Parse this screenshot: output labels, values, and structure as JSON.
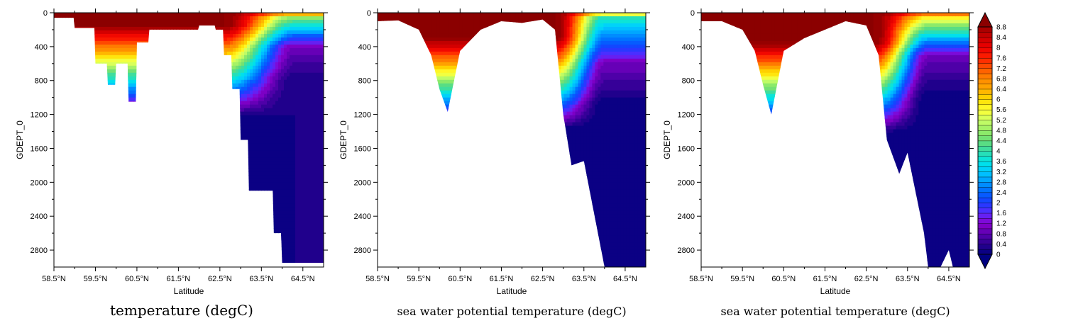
{
  "chart_data": [
    {
      "type": "filled-contour",
      "title": "temperature (degC)",
      "xlabel": "Latitude",
      "ylabel": "GDEPT_0",
      "xlim": [
        58.5,
        65.0
      ],
      "ylim": [
        3000,
        0
      ],
      "xticks": [
        58.5,
        59.5,
        60.5,
        61.5,
        62.5,
        63.5,
        64.5
      ],
      "xtick_labels": [
        "58.5°N",
        "59.5°N",
        "60.5°N",
        "61.5°N",
        "62.5°N",
        "63.5°N",
        "64.5°N"
      ],
      "yticks": [
        0,
        400,
        800,
        1200,
        1600,
        2000,
        2400,
        2800
      ],
      "ytick_labels": [
        "0",
        "400",
        "800",
        "1200",
        "1600",
        "2000",
        "2400",
        "2800"
      ],
      "bathymetry": [
        [
          58.5,
          60
        ],
        [
          59.0,
          180
        ],
        [
          59.5,
          600
        ],
        [
          59.8,
          850
        ],
        [
          60.0,
          600
        ],
        [
          60.3,
          1050
        ],
        [
          60.5,
          350
        ],
        [
          60.8,
          200
        ],
        [
          61.5,
          200
        ],
        [
          62.0,
          150
        ],
        [
          62.4,
          200
        ],
        [
          62.6,
          500
        ],
        [
          62.8,
          900
        ],
        [
          63.0,
          1500
        ],
        [
          63.2,
          2100
        ],
        [
          63.5,
          2100
        ],
        [
          63.8,
          2600
        ],
        [
          64.0,
          2950
        ],
        [
          65.0,
          2950
        ]
      ],
      "step_bottom": true,
      "profile": {
        "north_start_lat": 62.6,
        "north_end_lat": 64.3,
        "warm_temp": 9.0,
        "north_surface_temp": 5.0,
        "north_deep_temp": 0.2,
        "front_depth_south": 150,
        "front_depth_north": 400
      }
    },
    {
      "type": "filled-contour",
      "title": "sea water potential temperature (degC)",
      "xlabel": "Latitude",
      "ylabel": "GDEPT_0",
      "xlim": [
        58.5,
        65.0
      ],
      "ylim": [
        3000,
        0
      ],
      "xticks": [
        58.5,
        59.5,
        60.5,
        61.5,
        62.5,
        63.5,
        64.5
      ],
      "xtick_labels": [
        "58.5°N",
        "59.5°N",
        "60.5°N",
        "61.5°N",
        "62.5°N",
        "63.5°N",
        "64.5°N"
      ],
      "yticks": [
        0,
        400,
        800,
        1200,
        1600,
        2000,
        2400,
        2800
      ],
      "ytick_labels": [
        "0",
        "400",
        "800",
        "1200",
        "1600",
        "2000",
        "2400",
        "2800"
      ],
      "bathymetry": [
        [
          58.5,
          100
        ],
        [
          59.0,
          90
        ],
        [
          59.5,
          200
        ],
        [
          59.8,
          500
        ],
        [
          60.0,
          900
        ],
        [
          60.2,
          1170
        ],
        [
          60.5,
          450
        ],
        [
          61.0,
          200
        ],
        [
          61.5,
          100
        ],
        [
          62.0,
          120
        ],
        [
          62.5,
          80
        ],
        [
          62.8,
          200
        ],
        [
          63.0,
          1200
        ],
        [
          63.2,
          1800
        ],
        [
          63.5,
          1750
        ],
        [
          63.8,
          2500
        ],
        [
          64.0,
          3000
        ],
        [
          65.0,
          3000
        ]
      ],
      "step_bottom": false,
      "profile": {
        "north_start_lat": 62.8,
        "north_end_lat": 64.0,
        "warm_temp": 9.0,
        "north_surface_temp": 4.0,
        "north_deep_temp": 0.0,
        "front_depth_south": 300,
        "front_depth_north": 600
      }
    },
    {
      "type": "filled-contour",
      "title": "sea water potential temperature (degC)",
      "xlabel": "Latitude",
      "ylabel": "GDEPT_0",
      "xlim": [
        58.5,
        65.0
      ],
      "ylim": [
        3000,
        0
      ],
      "xticks": [
        58.5,
        59.5,
        60.5,
        61.5,
        62.5,
        63.5,
        64.5
      ],
      "xtick_labels": [
        "58.5°N",
        "59.5°N",
        "60.5°N",
        "61.5°N",
        "62.5°N",
        "63.5°N",
        "64.5°N"
      ],
      "yticks": [
        0,
        400,
        800,
        1200,
        1600,
        2000,
        2400,
        2800
      ],
      "ytick_labels": [
        "0",
        "400",
        "800",
        "1200",
        "1600",
        "2000",
        "2400",
        "2800"
      ],
      "bathymetry": [
        [
          58.5,
          100
        ],
        [
          59.0,
          100
        ],
        [
          59.5,
          200
        ],
        [
          59.8,
          450
        ],
        [
          60.0,
          850
        ],
        [
          60.2,
          1200
        ],
        [
          60.5,
          450
        ],
        [
          61.0,
          300
        ],
        [
          61.5,
          200
        ],
        [
          62.0,
          100
        ],
        [
          62.5,
          150
        ],
        [
          62.8,
          500
        ],
        [
          63.0,
          1500
        ],
        [
          63.3,
          1900
        ],
        [
          63.5,
          1650
        ],
        [
          63.9,
          2600
        ],
        [
          64.0,
          3000
        ],
        [
          64.3,
          3000
        ],
        [
          64.5,
          2800
        ],
        [
          64.6,
          3000
        ],
        [
          65.0,
          3000
        ]
      ],
      "step_bottom": false,
      "profile": {
        "north_start_lat": 62.7,
        "north_end_lat": 64.0,
        "warm_temp": 9.0,
        "north_surface_temp": 6.0,
        "north_deep_temp": 0.0,
        "front_depth_south": 350,
        "front_depth_north": 500
      }
    }
  ],
  "colorbar": {
    "levels": [
      0,
      0.2,
      0.4,
      0.6,
      0.8,
      1.0,
      1.2,
      1.4,
      1.6,
      1.8,
      2.0,
      2.2,
      2.4,
      2.6,
      2.8,
      3.0,
      3.2,
      3.4,
      3.6,
      3.8,
      4.0,
      4.2,
      4.4,
      4.6,
      4.8,
      5.0,
      5.2,
      5.4,
      5.6,
      5.8,
      6.0,
      6.2,
      6.4,
      6.6,
      6.8,
      7.0,
      7.2,
      7.4,
      7.6,
      7.8,
      8.0,
      8.2,
      8.4,
      8.6,
      8.8
    ],
    "labels": [
      "0",
      "0.4",
      "0.8",
      "1.2",
      "1.6",
      "2",
      "2.4",
      "2.8",
      "3.2",
      "3.6",
      "4",
      "4.4",
      "4.8",
      "5.2",
      "5.6",
      "6",
      "6.4",
      "6.8",
      "7.2",
      "7.6",
      "8",
      "8.4",
      "8.8"
    ],
    "under_color": "#000080",
    "over_color": "#8b0000",
    "stops": [
      {
        "v": 0.0,
        "c": "#000080"
      },
      {
        "v": 0.4,
        "c": "#2a0090"
      },
      {
        "v": 0.8,
        "c": "#5a00b0"
      },
      {
        "v": 1.2,
        "c": "#8800cc"
      },
      {
        "v": 1.6,
        "c": "#5a2bff"
      },
      {
        "v": 2.0,
        "c": "#1a3cff"
      },
      {
        "v": 2.4,
        "c": "#0066ff"
      },
      {
        "v": 2.8,
        "c": "#0099ff"
      },
      {
        "v": 3.2,
        "c": "#00ccff"
      },
      {
        "v": 3.6,
        "c": "#00e6e6"
      },
      {
        "v": 4.0,
        "c": "#33ddaa"
      },
      {
        "v": 4.4,
        "c": "#66dd77"
      },
      {
        "v": 4.8,
        "c": "#99ee66"
      },
      {
        "v": 5.2,
        "c": "#ccff66"
      },
      {
        "v": 5.6,
        "c": "#ffff33"
      },
      {
        "v": 6.0,
        "c": "#ffdd00"
      },
      {
        "v": 6.4,
        "c": "#ffaa00"
      },
      {
        "v": 6.8,
        "c": "#ff8800"
      },
      {
        "v": 7.2,
        "c": "#ff5500"
      },
      {
        "v": 7.6,
        "c": "#ff2200"
      },
      {
        "v": 8.0,
        "c": "#ee0000"
      },
      {
        "v": 8.4,
        "c": "#cc0000"
      },
      {
        "v": 8.8,
        "c": "#a00000"
      },
      {
        "v": 9.0,
        "c": "#8b0000"
      }
    ]
  }
}
